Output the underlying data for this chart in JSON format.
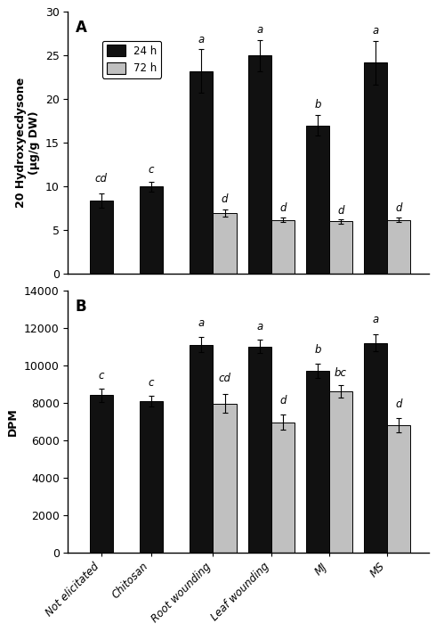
{
  "categories": [
    "Not elicitated",
    "Chitosan",
    "Root wounding",
    "Leaf wounding",
    "MJ",
    "MS"
  ],
  "panel_A": {
    "label": "A",
    "ylabel": "20 Hydroxyecdysone\n(μg/g DW)",
    "ylim": [
      0,
      30
    ],
    "yticks": [
      0,
      5,
      10,
      15,
      20,
      25,
      30
    ],
    "bar_24h": [
      8.4,
      10.0,
      23.2,
      25.0,
      17.0,
      24.2
    ],
    "bar_72h": [
      null,
      null,
      7.0,
      6.2,
      6.0,
      6.2
    ],
    "err_24h": [
      0.8,
      0.55,
      2.5,
      1.8,
      1.2,
      2.5
    ],
    "err_72h": [
      null,
      null,
      0.4,
      0.3,
      0.25,
      0.3
    ],
    "labels_24h": [
      "cd",
      "c",
      "a",
      "a",
      "b",
      "a"
    ],
    "labels_72h": [
      "",
      "",
      "d",
      "d",
      "d",
      "d"
    ],
    "label_y_24h_offset": [
      1.0,
      0.7,
      0.5,
      0.5,
      0.5,
      0.5
    ],
    "label_y_72h_offset": [
      0,
      0,
      0.5,
      0.4,
      0.35,
      0.35
    ]
  },
  "panel_B": {
    "label": "B",
    "ylabel": "DPM",
    "ylim": [
      0,
      14000
    ],
    "yticks": [
      0,
      2000,
      4000,
      6000,
      8000,
      10000,
      12000,
      14000
    ],
    "bar_24h": [
      8400,
      8100,
      11100,
      11000,
      9700,
      11200
    ],
    "bar_72h": [
      null,
      null,
      7950,
      6950,
      8600,
      6800
    ],
    "err_24h": [
      350,
      280,
      400,
      350,
      380,
      450
    ],
    "err_72h": [
      null,
      null,
      500,
      400,
      320,
      380
    ],
    "labels_24h": [
      "c",
      "c",
      "a",
      "a",
      "b",
      "a"
    ],
    "labels_72h": [
      "",
      "",
      "cd",
      "d",
      "bc",
      "d"
    ],
    "label_y_24h_offset": [
      400,
      350,
      450,
      400,
      420,
      500
    ],
    "label_y_72h_offset": [
      0,
      0,
      550,
      450,
      360,
      420
    ]
  },
  "color_24h": "#111111",
  "color_72h": "#c0c0c0",
  "bar_width": 0.28,
  "group_positions": [
    0.5,
    1.1,
    1.85,
    2.55,
    3.25,
    3.95
  ],
  "legend_labels": [
    "24 h",
    "72 h"
  ]
}
